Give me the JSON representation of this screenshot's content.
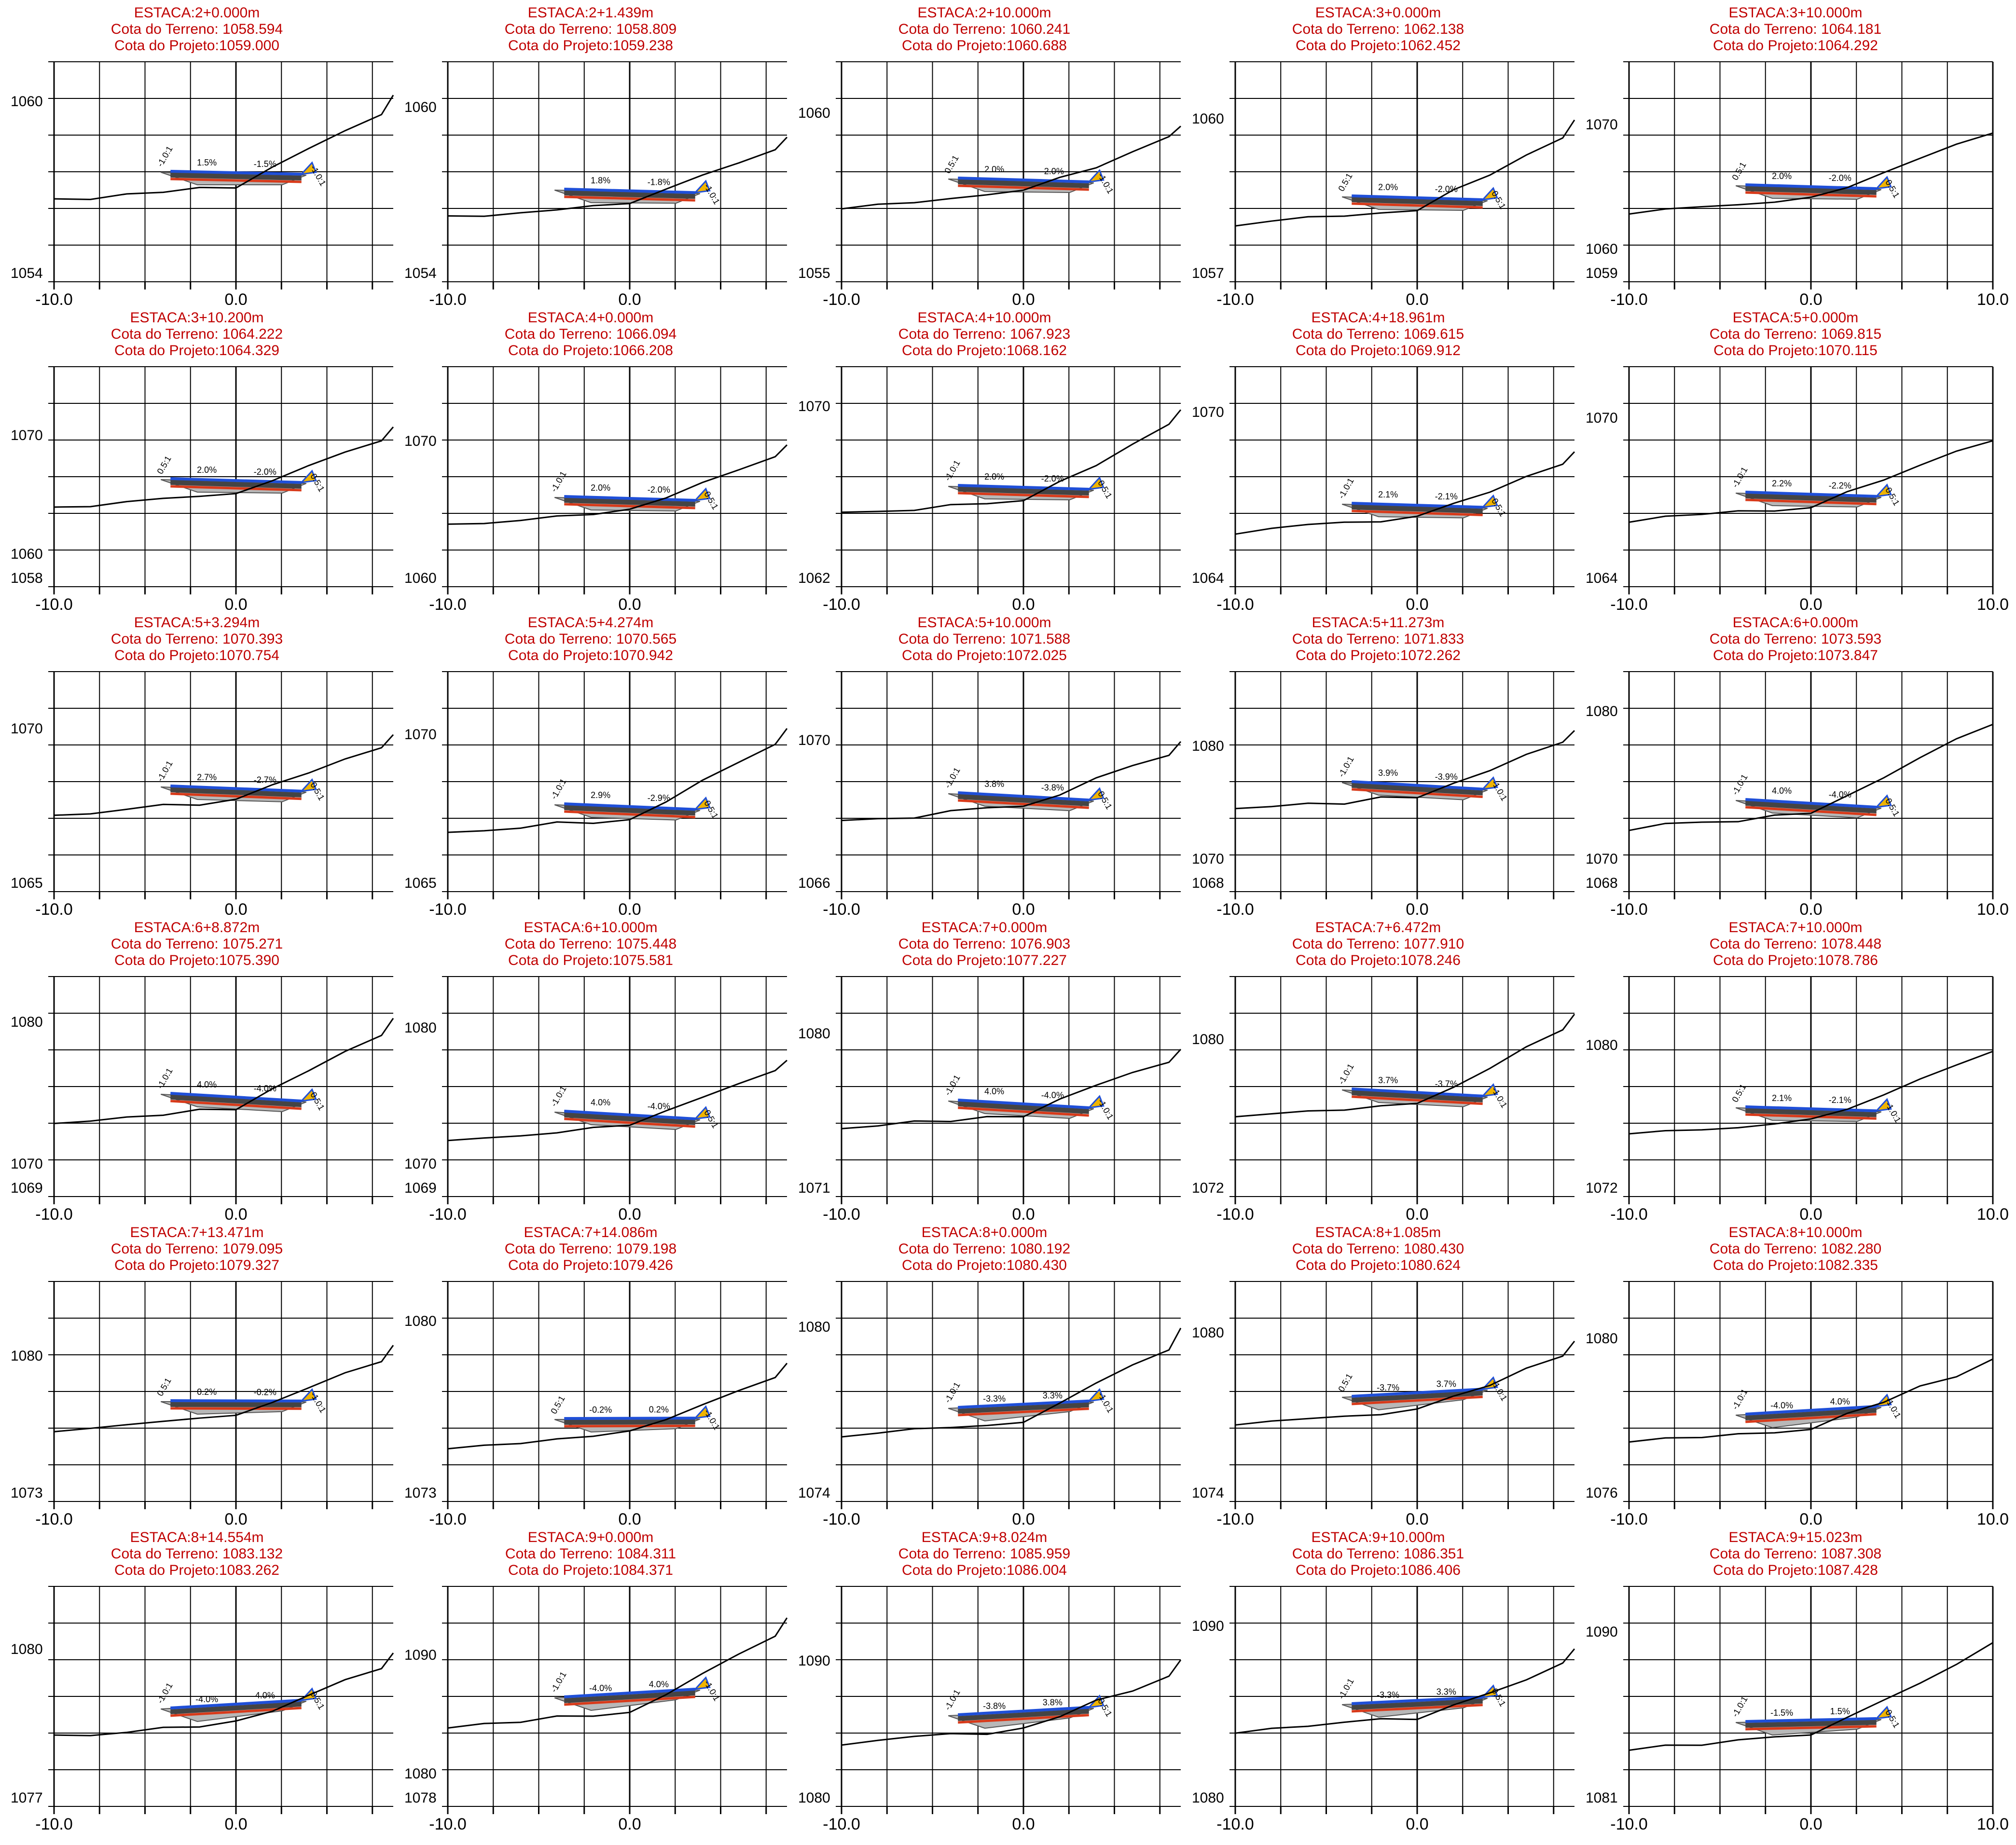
{
  "sheet": {
    "x_ticks": [
      "-10.0",
      "0.0",
      "10.0"
    ],
    "colors": {
      "title": "#c00000",
      "terrain": "#000000",
      "grid": "#000000",
      "pavement_top": "#1f4fd8",
      "subgrade": "#d83a1a",
      "fill_area": "#b8b8b8",
      "cut_slope": "#f0b400"
    }
  },
  "sections": [
    {
      "estaca": "ESTACA:2+0.000m",
      "terreno": "Cota do Terreno: 1058.594",
      "projeto": "Cota do Projeto:1059.000",
      "ytop": "1060",
      "ybot": "1054",
      "slope_l": "1.5%",
      "slope_r": "-1.5%",
      "tl": "-1.0:1",
      "tr": "-1.0:1"
    },
    {
      "estaca": "ESTACA:2+1.439m",
      "terreno": "Cota do Terreno: 1058.809",
      "projeto": "Cota do Projeto:1059.238",
      "ytop": "1060",
      "ybot": "1054",
      "slope_l": "1.8%",
      "slope_r": "-1.8%",
      "tl": "",
      "tr": "-1.0:1"
    },
    {
      "estaca": "ESTACA:2+10.000m",
      "terreno": "Cota do Terreno: 1060.241",
      "projeto": "Cota do Projeto:1060.688",
      "ytop": "1060",
      "ybot": "1055",
      "slope_l": "2.0%",
      "slope_r": "-2.0%",
      "tl": "0.5:1",
      "tr": "-1.0:1"
    },
    {
      "estaca": "ESTACA:3+0.000m",
      "terreno": "Cota do Terreno: 1062.138",
      "projeto": "Cota do Projeto:1062.452",
      "ytop": "1060",
      "ybot": "1057",
      "slope_l": "2.0%",
      "slope_r": "-2.0%",
      "tl": "0.5:1",
      "tr": "0.5:1"
    },
    {
      "estaca": "ESTACA:3+10.000m",
      "terreno": "Cota do Terreno: 1064.181",
      "projeto": "Cota do Projeto:1064.292",
      "ytop": "1070",
      "ybot": "1060",
      "ybot2": "1059",
      "slope_l": "2.0%",
      "slope_r": "-2.0%",
      "tl": "0.5:1",
      "tr": "0.5:1"
    },
    {
      "estaca": "ESTACA:3+10.200m",
      "terreno": "Cota do Terreno: 1064.222",
      "projeto": "Cota do Projeto:1064.329",
      "ytop": "1070",
      "ybot": "1060",
      "ybot2": "1058",
      "slope_l": "2.0%",
      "slope_r": "-2.0%",
      "tl": "0.5:1",
      "tr": "0.5:1"
    },
    {
      "estaca": "ESTACA:4+0.000m",
      "terreno": "Cota do Terreno: 1066.094",
      "projeto": "Cota do Projeto:1066.208",
      "ytop": "1070",
      "ybot": "1060",
      "slope_l": "2.0%",
      "slope_r": "-2.0%",
      "tl": "-1.0:1",
      "tr": "0.5:1"
    },
    {
      "estaca": "ESTACA:4+10.000m",
      "terreno": "Cota do Terreno: 1067.923",
      "projeto": "Cota do Projeto:1068.162",
      "ytop": "1070",
      "ybot": "1062",
      "slope_l": "2.0%",
      "slope_r": "-2.0%",
      "tl": "-1.0:1",
      "tr": "0.5:1"
    },
    {
      "estaca": "ESTACA:4+18.961m",
      "terreno": "Cota do Terreno: 1069.615",
      "projeto": "Cota do Projeto:1069.912",
      "ytop": "1070",
      "ybot": "1064",
      "slope_l": "2.1%",
      "slope_r": "-2.1%",
      "tl": "-1.0:1",
      "tr": "0.5:1"
    },
    {
      "estaca": "ESTACA:5+0.000m",
      "terreno": "Cota do Terreno: 1069.815",
      "projeto": "Cota do Projeto:1070.115",
      "ytop": "1070",
      "ybot": "1064",
      "slope_l": "2.2%",
      "slope_r": "-2.2%",
      "tl": "-1.0:1",
      "tr": "0.5:1"
    },
    {
      "estaca": "ESTACA:5+3.294m",
      "terreno": "Cota do Terreno: 1070.393",
      "projeto": "Cota do Projeto:1070.754",
      "ytop": "1070",
      "ybot": "1065",
      "slope_l": "2.7%",
      "slope_r": "-2.7%",
      "tl": "-1.0:1",
      "tr": "0.5:1"
    },
    {
      "estaca": "ESTACA:5+4.274m",
      "terreno": "Cota do Terreno: 1070.565",
      "projeto": "Cota do Projeto:1070.942",
      "ytop": "1070",
      "ybot": "1065",
      "slope_l": "2.9%",
      "slope_r": "-2.9%",
      "tl": "-1.0:1",
      "tr": "0.5:1"
    },
    {
      "estaca": "ESTACA:5+10.000m",
      "terreno": "Cota do Terreno: 1071.588",
      "projeto": "Cota do Projeto:1072.025",
      "ytop": "1070",
      "ybot": "1066",
      "slope_l": "3.8%",
      "slope_r": "-3.8%",
      "tl": "-1.0:1",
      "tr": "0.5:1"
    },
    {
      "estaca": "ESTACA:5+11.273m",
      "terreno": "Cota do Terreno: 1071.833",
      "projeto": "Cota do Projeto:1072.262",
      "ytop": "1080",
      "ybot": "1070",
      "ybot2": "1068",
      "slope_l": "3.9%",
      "slope_r": "-3.9%",
      "tl": "-1.0:1",
      "tr": "-1.0:1"
    },
    {
      "estaca": "ESTACA:6+0.000m",
      "terreno": "Cota do Terreno: 1073.593",
      "projeto": "Cota do Projeto:1073.847",
      "ytop": "1080",
      "ybot": "1070",
      "ybot2": "1068",
      "slope_l": "4.0%",
      "slope_r": "-4.0%",
      "tl": "-1.0:1",
      "tr": "0.5:1"
    },
    {
      "estaca": "ESTACA:6+8.872m",
      "terreno": "Cota do Terreno: 1075.271",
      "projeto": "Cota do Projeto:1075.390",
      "ytop": "1080",
      "ybot": "1070",
      "ybot2": "1069",
      "slope_l": "4.0%",
      "slope_r": "-4.0%",
      "tl": "-1.0:1",
      "tr": "0.5:1"
    },
    {
      "estaca": "ESTACA:6+10.000m",
      "terreno": "Cota do Terreno: 1075.448",
      "projeto": "Cota do Projeto:1075.581",
      "ytop": "1080",
      "ybot": "1070",
      "ybot2": "1069",
      "slope_l": "4.0%",
      "slope_r": "-4.0%",
      "tl": "-1.0:1",
      "tr": "0.5:1"
    },
    {
      "estaca": "ESTACA:7+0.000m",
      "terreno": "Cota do Terreno: 1076.903",
      "projeto": "Cota do Projeto:1077.227",
      "ytop": "1080",
      "ybot": "1071",
      "slope_l": "4.0%",
      "slope_r": "-4.0%",
      "tl": "-1.0:1",
      "tr": "-1.0:1"
    },
    {
      "estaca": "ESTACA:7+6.472m",
      "terreno": "Cota do Terreno: 1077.910",
      "projeto": "Cota do Projeto:1078.246",
      "ytop": "1080",
      "ybot": "1072",
      "slope_l": "3.7%",
      "slope_r": "-3.7%",
      "tl": "-1.0:1",
      "tr": "-1.0:1"
    },
    {
      "estaca": "ESTACA:7+10.000m",
      "terreno": "Cota do Terreno: 1078.448",
      "projeto": "Cota do Projeto:1078.786",
      "ytop": "1080",
      "ybot": "1072",
      "slope_l": "2.1%",
      "slope_r": "-2.1%",
      "tl": "0.5:1",
      "tr": "-1.0:1"
    },
    {
      "estaca": "ESTACA:7+13.471m",
      "terreno": "Cota do Terreno: 1079.095",
      "projeto": "Cota do Projeto:1079.327",
      "ytop": "1080",
      "ybot": "1073",
      "slope_l": "0.2%",
      "slope_r": "-0.2%",
      "tl": "0.5:1",
      "tr": "-1.0:1"
    },
    {
      "estaca": "ESTACA:7+14.086m",
      "terreno": "Cota do Terreno: 1079.198",
      "projeto": "Cota do Projeto:1079.426",
      "ytop": "1080",
      "ybot": "1073",
      "slope_l": "-0.2%",
      "slope_r": "0.2%",
      "tl": "0.5:1",
      "tr": "-1.0:1"
    },
    {
      "estaca": "ESTACA:8+0.000m",
      "terreno": "Cota do Terreno: 1080.192",
      "projeto": "Cota do Projeto:1080.430",
      "ytop": "1080",
      "ybot": "1074",
      "slope_l": "-3.3%",
      "slope_r": "3.3%",
      "tl": "-1.0:1",
      "tr": "-1.0:1"
    },
    {
      "estaca": "ESTACA:8+1.085m",
      "terreno": "Cota do Terreno: 1080.430",
      "projeto": "Cota do Projeto:1080.624",
      "ytop": "1080",
      "ybot": "1074",
      "slope_l": "-3.7%",
      "slope_r": "3.7%",
      "tl": "0.5:1",
      "tr": "-1.0:1"
    },
    {
      "estaca": "ESTACA:8+10.000m",
      "terreno": "Cota do Terreno: 1082.280",
      "projeto": "Cota do Projeto:1082.335",
      "ytop": "1080",
      "ybot": "1076",
      "slope_l": "-4.0%",
      "slope_r": "4.0%",
      "tl": "-1.0:1",
      "tr": "-1.0:1"
    },
    {
      "estaca": "ESTACA:8+14.554m",
      "terreno": "Cota do Terreno: 1083.132",
      "projeto": "Cota do Projeto:1083.262",
      "ytop": "1080",
      "ybot": "1077",
      "slope_l": "-4.0%",
      "slope_r": "4.0%",
      "tl": "-1.0:1",
      "tr": "0.5:1"
    },
    {
      "estaca": "ESTACA:9+0.000m",
      "terreno": "Cota do Terreno: 1084.311",
      "projeto": "Cota do Projeto:1084.371",
      "ytop": "1090",
      "ybot": "1080",
      "ybot2": "1078",
      "slope_l": "-4.0%",
      "slope_r": "4.0%",
      "tl": "-1.0:1",
      "tr": "-1.0:1"
    },
    {
      "estaca": "ESTACA:9+8.024m",
      "terreno": "Cota do Terreno: 1085.959",
      "projeto": "Cota do Projeto:1086.004",
      "ytop": "1090",
      "ybot": "1080",
      "slope_l": "-3.8%",
      "slope_r": "3.8%",
      "tl": "-1.0:1",
      "tr": "0.5:1"
    },
    {
      "estaca": "ESTACA:9+10.000m",
      "terreno": "Cota do Terreno: 1086.351",
      "projeto": "Cota do Projeto:1086.406",
      "ytop": "1090",
      "ybot": "1080",
      "slope_l": "-3.3%",
      "slope_r": "3.3%",
      "tl": "-1.0:1",
      "tr": "0.5:1"
    },
    {
      "estaca": "ESTACA:9+15.023m",
      "terreno": "Cota do Terreno: 1087.308",
      "projeto": "Cota do Projeto:1087.428",
      "ytop": "1090",
      "ybot": "1081",
      "slope_l": "-1.5%",
      "slope_r": "1.5%",
      "tl": "-1.0:1",
      "tr": "0.5:1"
    }
  ]
}
